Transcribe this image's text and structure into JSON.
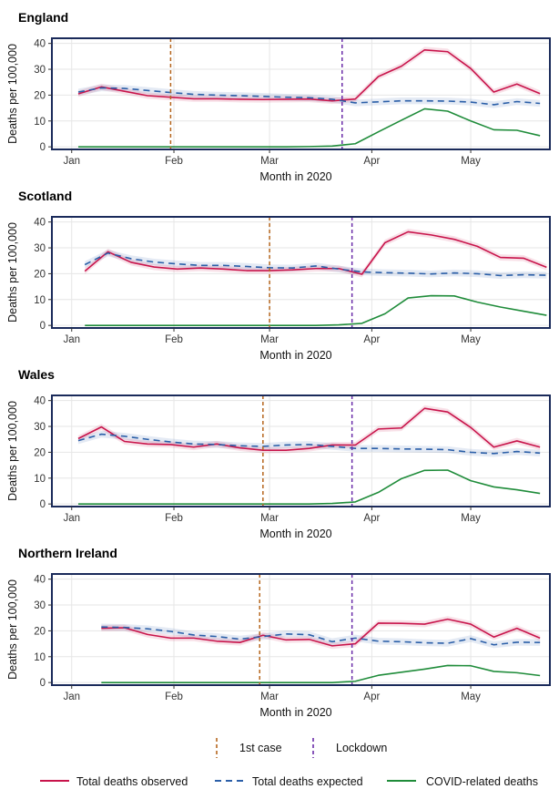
{
  "x_axis_label": "Month in 2020",
  "y_axis_label": "Deaths per 100,000",
  "legend": {
    "markers": [
      {
        "label": "1st case",
        "color": "#b5651d"
      },
      {
        "label": "Lockdown",
        "color": "#6a2ca8"
      }
    ],
    "series": [
      {
        "label": "Total deaths observed",
        "color": "#c8144b",
        "style": "solid"
      },
      {
        "label": "Total deaths expected",
        "color": "#2b5fa8",
        "style": "dashed"
      },
      {
        "label": "COVID-related deaths",
        "color": "#1f8c3a",
        "style": "solid"
      }
    ]
  },
  "chart_data": [
    {
      "type": "line",
      "title": "England",
      "xlabel": "Month in 2020",
      "ylabel": "Deaths per 100,000",
      "x_unit": "day of 2020",
      "x_ticks": [
        {
          "label": "Jan",
          "value": 1
        },
        {
          "label": "Feb",
          "value": 32
        },
        {
          "label": "Mar",
          "value": 61
        },
        {
          "label": "Apr",
          "value": 92
        },
        {
          "label": "May",
          "value": 122
        }
      ],
      "xlim": [
        -5,
        146
      ],
      "ylim": [
        -1,
        42
      ],
      "y_ticks": [
        0,
        10,
        20,
        30,
        40
      ],
      "vlines": {
        "1st case": 31,
        "Lockdown": 83
      },
      "series": [
        {
          "name": "Total deaths observed",
          "x": [
            3,
            10,
            17,
            24,
            31,
            38,
            45,
            52,
            59,
            66,
            73,
            80,
            87,
            94,
            101,
            108,
            115,
            122,
            129,
            136,
            143
          ],
          "y": [
            20.5,
            23.2,
            21.5,
            19.8,
            19.2,
            18.6,
            18.6,
            18.4,
            18.3,
            18.4,
            18.5,
            17.8,
            18.5,
            27.2,
            31.2,
            37.5,
            36.8,
            30.3,
            21.2,
            24.3,
            20.6
          ]
        },
        {
          "name": "Total deaths expected",
          "x": [
            3,
            10,
            17,
            24,
            31,
            38,
            45,
            52,
            59,
            66,
            73,
            80,
            87,
            94,
            101,
            108,
            115,
            122,
            129,
            136,
            143
          ],
          "y": [
            21.2,
            22.8,
            22.6,
            21.8,
            21.0,
            20.3,
            20.0,
            19.8,
            19.5,
            19.2,
            19.0,
            18.4,
            17.0,
            17.4,
            17.8,
            17.8,
            17.7,
            17.3,
            16.3,
            17.5,
            16.8
          ]
        },
        {
          "name": "COVID-related deaths",
          "x": [
            3,
            10,
            17,
            24,
            31,
            38,
            45,
            52,
            59,
            66,
            73,
            80,
            87,
            94,
            101,
            108,
            115,
            122,
            129,
            136,
            143
          ],
          "y": [
            0,
            0,
            0,
            0,
            0,
            0,
            0,
            0,
            0,
            0,
            0.1,
            0.3,
            1.2,
            5.8,
            10.3,
            14.7,
            13.8,
            10.0,
            6.6,
            6.4,
            4.3
          ]
        }
      ]
    },
    {
      "type": "line",
      "title": "Scotland",
      "xlabel": "Month in 2020",
      "ylabel": "Deaths per 100,000",
      "x_unit": "day of 2020",
      "x_ticks": [
        {
          "label": "Jan",
          "value": 1
        },
        {
          "label": "Feb",
          "value": 32
        },
        {
          "label": "Mar",
          "value": 61
        },
        {
          "label": "Apr",
          "value": 92
        },
        {
          "label": "May",
          "value": 122
        }
      ],
      "xlim": [
        -5,
        146
      ],
      "ylim": [
        -1,
        42
      ],
      "y_ticks": [
        0,
        10,
        20,
        30,
        40
      ],
      "vlines": {
        "1st case": 61,
        "Lockdown": 86
      },
      "series": [
        {
          "name": "Total deaths observed",
          "x": [
            5,
            12,
            19,
            26,
            33,
            40,
            47,
            54,
            61,
            68,
            75,
            82,
            89,
            96,
            103,
            110,
            117,
            124,
            131,
            138,
            145
          ],
          "y": [
            21.0,
            28.5,
            24.4,
            22.6,
            21.8,
            22.2,
            21.8,
            21.2,
            21.2,
            21.5,
            22.0,
            22.0,
            19.8,
            32.0,
            36.2,
            35.0,
            33.3,
            30.6,
            26.3,
            26.0,
            22.5
          ]
        },
        {
          "name": "Total deaths expected",
          "x": [
            5,
            12,
            19,
            26,
            33,
            40,
            47,
            54,
            61,
            68,
            75,
            82,
            89,
            96,
            103,
            110,
            117,
            124,
            131,
            138,
            145
          ],
          "y": [
            23.5,
            28.0,
            25.8,
            24.5,
            23.8,
            23.2,
            23.2,
            22.8,
            22.3,
            22.2,
            23.0,
            21.8,
            20.7,
            20.4,
            20.2,
            19.9,
            20.3,
            20.0,
            19.3,
            19.6,
            19.4
          ]
        },
        {
          "name": "COVID-related deaths",
          "x": [
            5,
            12,
            19,
            26,
            33,
            40,
            47,
            54,
            61,
            68,
            75,
            82,
            89,
            96,
            103,
            110,
            117,
            124,
            131,
            138,
            145
          ],
          "y": [
            0,
            0,
            0,
            0,
            0,
            0,
            0,
            0,
            0,
            0,
            0,
            0.2,
            0.8,
            4.5,
            10.6,
            11.5,
            11.4,
            9.0,
            7.1,
            5.5,
            3.9
          ]
        }
      ]
    },
    {
      "type": "line",
      "title": "Wales",
      "xlabel": "Month in 2020",
      "ylabel": "Deaths per 100,000",
      "x_unit": "day of 2020",
      "x_ticks": [
        {
          "label": "Jan",
          "value": 1
        },
        {
          "label": "Feb",
          "value": 32
        },
        {
          "label": "Mar",
          "value": 61
        },
        {
          "label": "Apr",
          "value": 92
        },
        {
          "label": "May",
          "value": 122
        }
      ],
      "xlim": [
        -5,
        146
      ],
      "ylim": [
        -1,
        42
      ],
      "y_ticks": [
        0,
        10,
        20,
        30,
        40
      ],
      "vlines": {
        "1st case": 59,
        "Lockdown": 86
      },
      "series": [
        {
          "name": "Total deaths observed",
          "x": [
            3,
            10,
            17,
            24,
            31,
            38,
            45,
            52,
            59,
            66,
            73,
            80,
            87,
            94,
            101,
            108,
            115,
            122,
            129,
            136,
            143
          ],
          "y": [
            25.3,
            29.8,
            24.2,
            23.2,
            23.0,
            22.0,
            23.2,
            21.7,
            20.8,
            20.8,
            21.5,
            22.8,
            22.8,
            29.0,
            29.4,
            37.0,
            35.6,
            29.6,
            22.0,
            24.4,
            22.0
          ]
        },
        {
          "name": "Total deaths expected",
          "x": [
            3,
            10,
            17,
            24,
            31,
            38,
            45,
            52,
            59,
            66,
            73,
            80,
            87,
            94,
            101,
            108,
            115,
            122,
            129,
            136,
            143
          ],
          "y": [
            24.5,
            27.0,
            26.2,
            25.0,
            24.0,
            23.2,
            23.0,
            22.5,
            22.3,
            22.8,
            23.0,
            22.3,
            21.5,
            21.5,
            21.3,
            21.2,
            21.0,
            20.0,
            19.5,
            20.3,
            19.7
          ]
        },
        {
          "name": "COVID-related deaths",
          "x": [
            3,
            10,
            17,
            24,
            31,
            38,
            45,
            52,
            59,
            66,
            73,
            80,
            87,
            94,
            101,
            108,
            115,
            122,
            129,
            136,
            143
          ],
          "y": [
            0,
            0,
            0,
            0,
            0,
            0,
            0,
            0,
            0,
            0,
            0,
            0.2,
            0.8,
            4.5,
            9.8,
            13.0,
            13.1,
            9.0,
            6.6,
            5.5,
            4.1
          ]
        }
      ]
    },
    {
      "type": "line",
      "title": "Northern Ireland",
      "xlabel": "Month in 2020",
      "ylabel": "Deaths per 100,000",
      "x_unit": "day of 2020",
      "x_ticks": [
        {
          "label": "Jan",
          "value": 1
        },
        {
          "label": "Feb",
          "value": 32
        },
        {
          "label": "Mar",
          "value": 61
        },
        {
          "label": "Apr",
          "value": 92
        },
        {
          "label": "May",
          "value": 122
        }
      ],
      "xlim": [
        -5,
        146
      ],
      "ylim": [
        -1,
        42
      ],
      "y_ticks": [
        0,
        10,
        20,
        30,
        40
      ],
      "vlines": {
        "1st case": 58,
        "Lockdown": 86
      },
      "series": [
        {
          "name": "Total deaths observed",
          "x": [
            10,
            17,
            24,
            31,
            38,
            45,
            52,
            59,
            66,
            73,
            80,
            87,
            94,
            101,
            108,
            115,
            122,
            129,
            136,
            143
          ],
          "y": [
            21.0,
            21.2,
            18.6,
            17.2,
            17.2,
            16.0,
            15.5,
            18.3,
            16.5,
            16.7,
            14.2,
            15.0,
            23.0,
            22.9,
            22.6,
            24.5,
            22.6,
            17.6,
            21.0,
            17.2
          ]
        },
        {
          "name": "Total deaths expected",
          "x": [
            10,
            17,
            24,
            31,
            38,
            45,
            52,
            59,
            66,
            73,
            80,
            87,
            94,
            101,
            108,
            115,
            122,
            129,
            136,
            143
          ],
          "y": [
            21.5,
            21.3,
            20.8,
            19.8,
            18.4,
            17.8,
            16.8,
            17.8,
            18.8,
            18.5,
            15.8,
            17.2,
            16.0,
            15.8,
            15.4,
            15.2,
            17.0,
            14.6,
            15.6,
            15.5
          ]
        },
        {
          "name": "COVID-related deaths",
          "x": [
            10,
            17,
            24,
            31,
            38,
            45,
            52,
            59,
            66,
            73,
            80,
            87,
            94,
            101,
            108,
            115,
            122,
            129,
            136,
            143
          ],
          "y": [
            0,
            0,
            0,
            0,
            0,
            0,
            0,
            0,
            0,
            0,
            0,
            0.5,
            2.8,
            4.0,
            5.2,
            6.6,
            6.5,
            4.3,
            3.8,
            2.7
          ]
        }
      ]
    }
  ]
}
